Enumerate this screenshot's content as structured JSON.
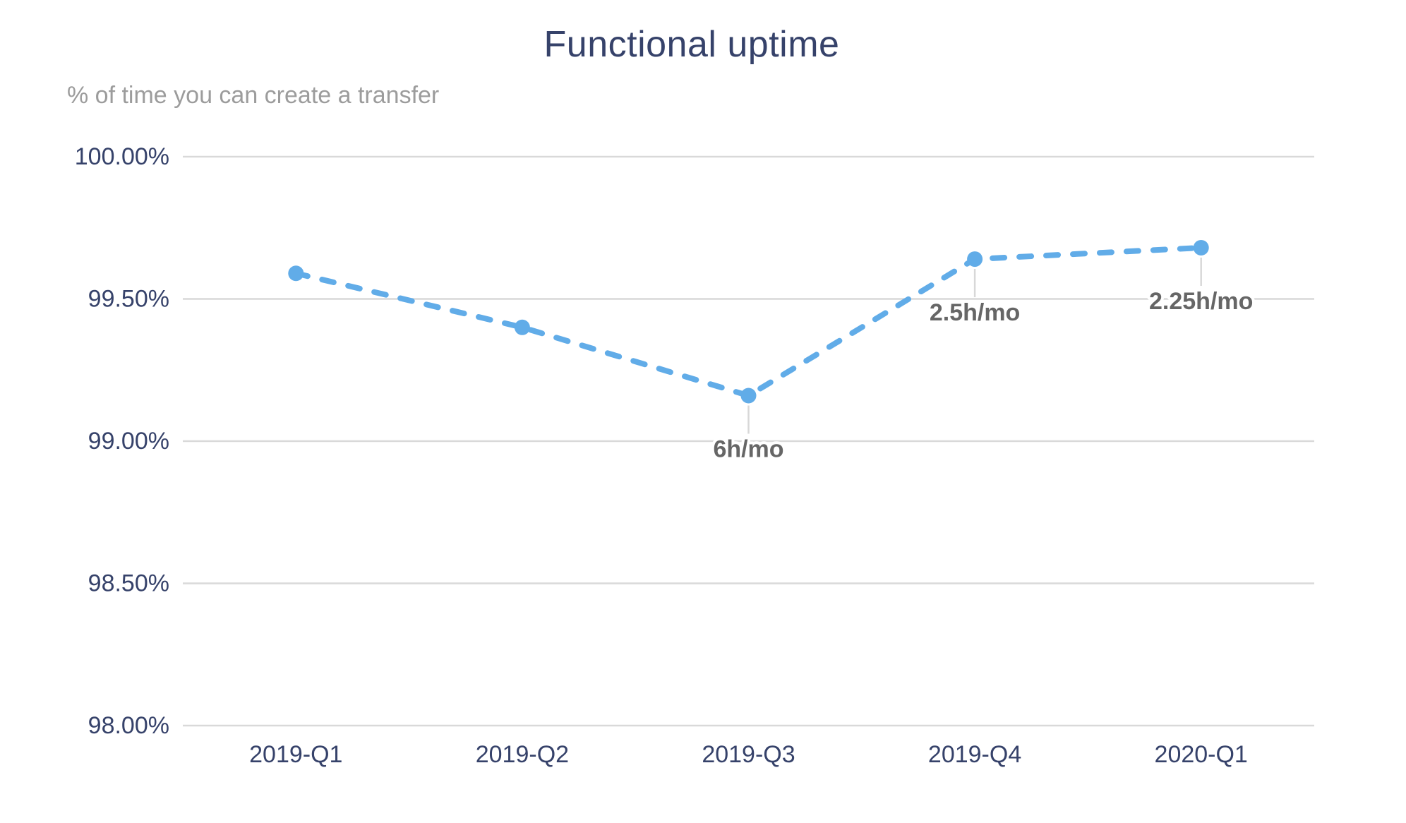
{
  "chart": {
    "title": "Functional uptime",
    "subtitle": "% of time you can create a transfer",
    "colors": {
      "series_blue": "#61ACE8",
      "title_navy": "#36426A",
      "tick_navy": "#36426A",
      "subtitle_gray": "#9C9C9C",
      "annotation_gray": "#666666",
      "gridline_gray": "#D9D9D9",
      "connector_gray": "#D8D8D8",
      "background": "#FFFFFF"
    }
  },
  "chart_data": {
    "type": "line",
    "line_style": "dashed",
    "marker": "circle",
    "title": "Functional uptime",
    "subtitle": "% of time you can create a transfer",
    "xlabel": "",
    "ylabel": "",
    "categories": [
      "2019-Q1",
      "2019-Q2",
      "2019-Q3",
      "2019-Q4",
      "2020-Q1"
    ],
    "series": [
      {
        "name": "Functional uptime",
        "unit": "%",
        "values": [
          99.59,
          99.4,
          99.16,
          99.64,
          99.68
        ]
      }
    ],
    "annotations": [
      {
        "index": 2,
        "category": "2019-Q3",
        "label": "6h/mo"
      },
      {
        "index": 3,
        "category": "2019-Q4",
        "label": "2.5h/mo"
      },
      {
        "index": 4,
        "category": "2020-Q1",
        "label": "2.25h/mo"
      }
    ],
    "y_ticks": [
      {
        "value": 100.0,
        "label": "100.00%"
      },
      {
        "value": 99.5,
        "label": "99.50%"
      },
      {
        "value": 99.0,
        "label": "99.00%"
      },
      {
        "value": 98.5,
        "label": "98.50%"
      },
      {
        "value": 98.0,
        "label": "98.00%"
      }
    ],
    "ylim": [
      98.0,
      100.0
    ],
    "grid": true,
    "legend": "none"
  }
}
